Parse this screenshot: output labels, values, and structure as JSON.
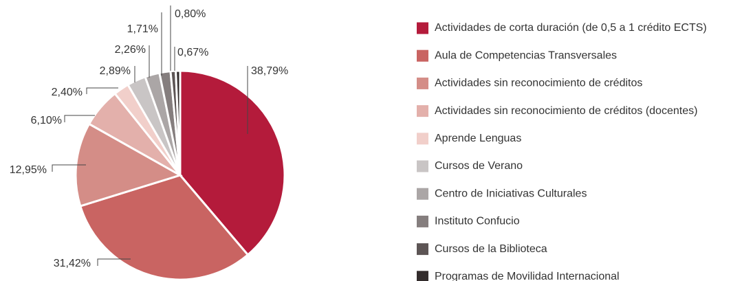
{
  "chart_data": {
    "type": "pie",
    "categories": [
      "Actividades de corta duración (de 0,5 a 1 crédito ECTS)",
      "Aula de Competencias Transversales",
      "Actividades sin reconocimiento de créditos",
      "Actividades sin reconocimiento de créditos (docentes)",
      "Aprende Lenguas",
      "Cursos de Verano",
      "Centro de Iniciativas Culturales",
      "Instituto Confucio",
      "Cursos de la Biblioteca",
      "Programas de Movilidad Internacional"
    ],
    "values": [
      38.79,
      31.42,
      12.95,
      6.1,
      2.4,
      2.89,
      2.26,
      1.71,
      0.8,
      0.67
    ],
    "value_labels": [
      "38,79%",
      "31,42%",
      "12,95%",
      "6,10%",
      "2,40%",
      "2,89%",
      "2,26%",
      "1,71%",
      "0,80%",
      "0,67%"
    ],
    "colors": [
      "#b41b3b",
      "#c96462",
      "#d48d87",
      "#e3b0ab",
      "#f1cfca",
      "#c9c5c5",
      "#aba6a6",
      "#857e7e",
      "#5d5555",
      "#332c2c"
    ],
    "legend": "right"
  }
}
